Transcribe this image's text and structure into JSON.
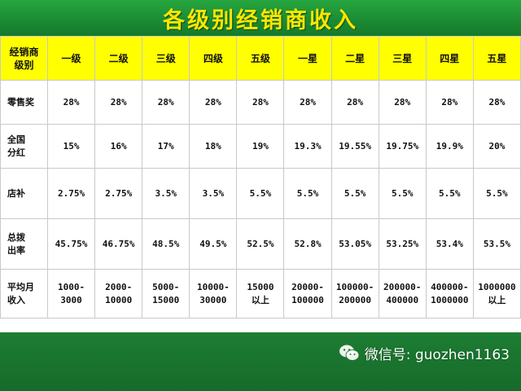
{
  "title": "各级别经销商收入",
  "table": {
    "corner": "经销商\n级别",
    "columns": [
      "一级",
      "二级",
      "三级",
      "四级",
      "五级",
      "一星",
      "二星",
      "三星",
      "四星",
      "五星"
    ],
    "rows": [
      {
        "label": "零售奖",
        "cells": [
          "28%",
          "28%",
          "28%",
          "28%",
          "28%",
          "28%",
          "28%",
          "28%",
          "28%",
          "28%"
        ]
      },
      {
        "label": "全国\n分红",
        "cells": [
          "15%",
          "16%",
          "17%",
          "18%",
          "19%",
          "19.3%",
          "19.55%",
          "19.75%",
          "19.9%",
          "20%"
        ]
      },
      {
        "label": "店补",
        "cells": [
          "2.75%",
          "2.75%",
          "3.5%",
          "3.5%",
          "5.5%",
          "5.5%",
          "5.5%",
          "5.5%",
          "5.5%",
          "5.5%"
        ]
      },
      {
        "label": "总拨\n出率",
        "cells": [
          "45.75%",
          "46.75%",
          "48.5%",
          "49.5%",
          "52.5%",
          "52.8%",
          "53.05%",
          "53.25%",
          "53.4%",
          "53.5%"
        ]
      },
      {
        "label": "平均月\n收入",
        "cells": [
          "1000-\n3000",
          "2000-\n10000",
          "5000-\n15000",
          "10000-\n30000",
          "15000\n以上",
          "20000-\n100000",
          "100000-\n200000",
          "200000-\n400000",
          "400000-\n1000000",
          "1000000\n以上"
        ]
      }
    ]
  },
  "watermark": {
    "text": "微信号: guozhen1163",
    "icon": "wechat-icon"
  },
  "colors": {
    "title_text": "#ffe600",
    "header_bg": "#ffff00",
    "background": "#1a7a30"
  }
}
